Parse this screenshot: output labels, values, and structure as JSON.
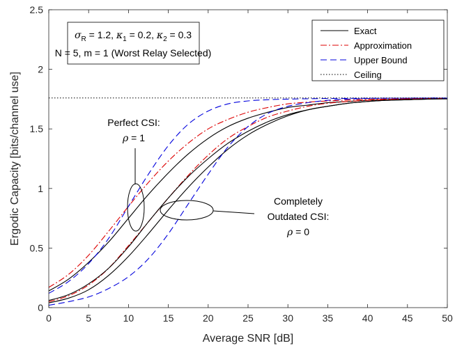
{
  "chart_data": {
    "type": "line",
    "xlabel": "Average SNR [dB]",
    "ylabel": "Ergodic Capacity [bits/channel use]",
    "xlim": [
      0,
      50
    ],
    "ylim": [
      0,
      2.5
    ],
    "xticks": [
      0,
      5,
      10,
      15,
      20,
      25,
      30,
      35,
      40,
      45,
      50
    ],
    "yticks": [
      0,
      0.5,
      1,
      1.5,
      2,
      2.5
    ],
    "ytick_labels": [
      "0",
      "0.5",
      "1",
      "1.5",
      "2",
      "2.5"
    ],
    "grid": false,
    "legend_position": "top-right",
    "legend": [
      {
        "label": "Exact",
        "color": "#000000",
        "dash": "solid"
      },
      {
        "label": "Approximation",
        "color": "#dd0000",
        "dash": "dashdot"
      },
      {
        "label": "Upper Bound",
        "color": "#0000dd",
        "dash": "dashed"
      },
      {
        "label": "Ceiling",
        "color": "#000000",
        "dash": "dotted"
      }
    ],
    "params_box": {
      "line1": {
        "sigma": "σ",
        "sigma_sub": "R",
        "sigma_val": " = 1.2, ",
        "k1": "κ",
        "k1_sub": "1",
        "k1_val": " = 0.2, ",
        "k2": "κ",
        "k2_sub": "2",
        "k2_val": " = 0.3"
      },
      "line2": "N = 5, m = 1 (Worst Relay Selected)"
    },
    "annotations": {
      "perfect": {
        "line1": "Perfect CSI:",
        "rho": "ρ",
        "value": " = 1"
      },
      "outdated": {
        "line1": "Completely",
        "line2": "Outdated CSI:",
        "rho": "ρ",
        "value": " = 0"
      }
    },
    "ceiling": 1.76,
    "x": [
      0,
      2.5,
      5,
      7.5,
      10,
      12.5,
      15,
      17.5,
      20,
      22.5,
      25,
      27.5,
      30,
      32.5,
      35,
      37.5,
      40,
      42.5,
      45,
      47.5,
      50
    ],
    "series": [
      {
        "group": "perfect",
        "line": "Exact",
        "color": "#000000",
        "dash": "solid",
        "values": [
          0.14,
          0.24,
          0.38,
          0.55,
          0.75,
          0.95,
          1.13,
          1.29,
          1.42,
          1.52,
          1.59,
          1.64,
          1.68,
          1.7,
          1.72,
          1.73,
          1.74,
          1.745,
          1.75,
          1.752,
          1.755
        ]
      },
      {
        "group": "perfect",
        "line": "Approximation",
        "color": "#dd0000",
        "dash": "dashdot",
        "values": [
          0.17,
          0.28,
          0.44,
          0.64,
          0.85,
          1.05,
          1.23,
          1.38,
          1.5,
          1.58,
          1.64,
          1.68,
          1.71,
          1.725,
          1.735,
          1.742,
          1.747,
          1.75,
          1.753,
          1.755,
          1.757
        ]
      },
      {
        "group": "perfect",
        "line": "Upper Bound",
        "color": "#0000dd",
        "dash": "dashed",
        "values": [
          0.12,
          0.22,
          0.37,
          0.58,
          0.85,
          1.12,
          1.36,
          1.54,
          1.65,
          1.71,
          1.735,
          1.745,
          1.75,
          1.753,
          1.755,
          1.756,
          1.757,
          1.758,
          1.758,
          1.759,
          1.759
        ]
      },
      {
        "group": "outdated",
        "line": "Exact",
        "color": "#000000",
        "dash": "solid",
        "values": [
          0.04,
          0.08,
          0.15,
          0.27,
          0.43,
          0.62,
          0.82,
          1.01,
          1.18,
          1.33,
          1.45,
          1.54,
          1.61,
          1.66,
          1.69,
          1.715,
          1.73,
          1.74,
          1.745,
          1.75,
          1.752
        ]
      },
      {
        "group": "outdated",
        "line": "Approximation",
        "color": "#dd0000",
        "dash": "dashdot",
        "values": [
          0.05,
          0.1,
          0.19,
          0.33,
          0.52,
          0.72,
          0.92,
          1.11,
          1.28,
          1.42,
          1.52,
          1.6,
          1.65,
          1.69,
          1.715,
          1.73,
          1.74,
          1.747,
          1.752,
          1.755,
          1.757
        ]
      },
      {
        "group": "outdated",
        "line": "Exact",
        "color": "#000000",
        "dash": "solid",
        "values": [
          0.06,
          0.11,
          0.2,
          0.33,
          0.51,
          0.72,
          0.92,
          1.1,
          1.25,
          1.38,
          1.48,
          1.56,
          1.62,
          1.66,
          1.69,
          1.715,
          1.73,
          1.74,
          1.745,
          1.75,
          1.752
        ]
      },
      {
        "group": "outdated",
        "line": "Upper Bound",
        "color": "#0000dd",
        "dash": "dashed",
        "values": [
          0.02,
          0.05,
          0.09,
          0.16,
          0.26,
          0.41,
          0.62,
          0.87,
          1.12,
          1.35,
          1.52,
          1.63,
          1.69,
          1.72,
          1.74,
          1.75,
          1.755,
          1.757,
          1.758,
          1.759,
          1.759
        ]
      }
    ]
  }
}
